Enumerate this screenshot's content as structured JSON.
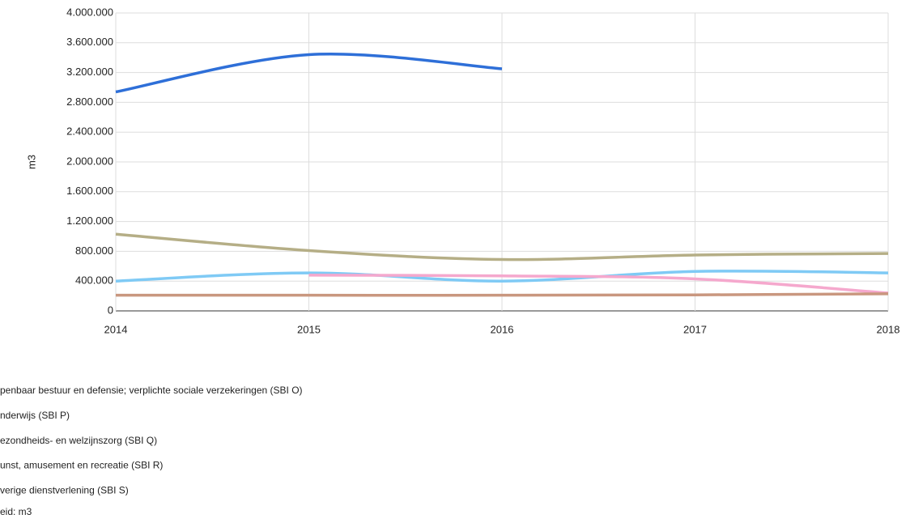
{
  "chart_data": {
    "type": "line",
    "y_label": "m3",
    "x": [
      2014,
      2015,
      2016,
      2017,
      2018
    ],
    "xlim": [
      2014,
      2018
    ],
    "xticks": [
      2014,
      2015,
      2016,
      2017,
      2018
    ],
    "ylim": [
      0,
      4000000
    ],
    "yticks": [
      {
        "value": 0,
        "label": "0"
      },
      {
        "value": 400000,
        "label": "400.000"
      },
      {
        "value": 800000,
        "label": "800.000"
      },
      {
        "value": 1200000,
        "label": "1.200.000"
      },
      {
        "value": 1600000,
        "label": "1.600.000"
      },
      {
        "value": 2000000,
        "label": "2.000.000"
      },
      {
        "value": 2400000,
        "label": "2.400.000"
      },
      {
        "value": 2800000,
        "label": "2.800.000"
      },
      {
        "value": 3200000,
        "label": "3.200.000"
      },
      {
        "value": 3600000,
        "label": "3.600.000"
      },
      {
        "value": 4000000,
        "label": "4.000.000"
      }
    ],
    "grid": true,
    "series": [
      {
        "name": "penbaar bestuur en defensie; verplichte sociale verzekeringen (SBI O)",
        "color": "#2e6fd8",
        "values": [
          2940000,
          3440000,
          3250000,
          null,
          null
        ]
      },
      {
        "name": "nderwijs (SBI P)",
        "color": "#b5ae86",
        "values": [
          1030000,
          810000,
          690000,
          750000,
          770000
        ]
      },
      {
        "name": "ezondheids- en welzijnszorg (SBI Q)",
        "color": "#7fcaf5",
        "values": [
          400000,
          510000,
          400000,
          530000,
          510000
        ]
      },
      {
        "name": "unst, amusement en recreatie (SBI R)",
        "color": "#f5a8cd",
        "values": [
          null,
          480000,
          470000,
          430000,
          240000
        ]
      },
      {
        "name": "verige dienstverlening (SBI S)",
        "color": "#c9977f",
        "values": [
          210000,
          210000,
          210000,
          215000,
          230000
        ]
      }
    ],
    "footnote": "eid: m3"
  }
}
